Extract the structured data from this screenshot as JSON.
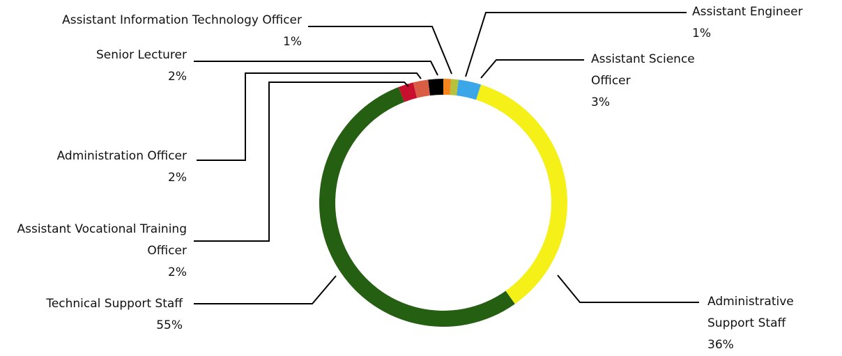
{
  "chart_data": {
    "type": "pie",
    "categories": [
      "Assistant Information Technology Officer",
      "Assistant Engineer",
      "Assistant Science Officer",
      "Administrative Support Staff",
      "Technical Support Staff",
      "Assistant Vocational Training Officer",
      "Administration Officer",
      "Senior Lecturer"
    ],
    "values": [
      1,
      1,
      3,
      36,
      55,
      2,
      2,
      2
    ],
    "value_labels": [
      "1%",
      "1%",
      "3%",
      "36%",
      "55%",
      "2%",
      "2%",
      "2%"
    ],
    "colors": [
      "#f5841f",
      "#b5c23a",
      "#3ba6e8",
      "#f5f018",
      "#245f12",
      "#c8102e",
      "#d95c45",
      "#000000"
    ]
  }
}
